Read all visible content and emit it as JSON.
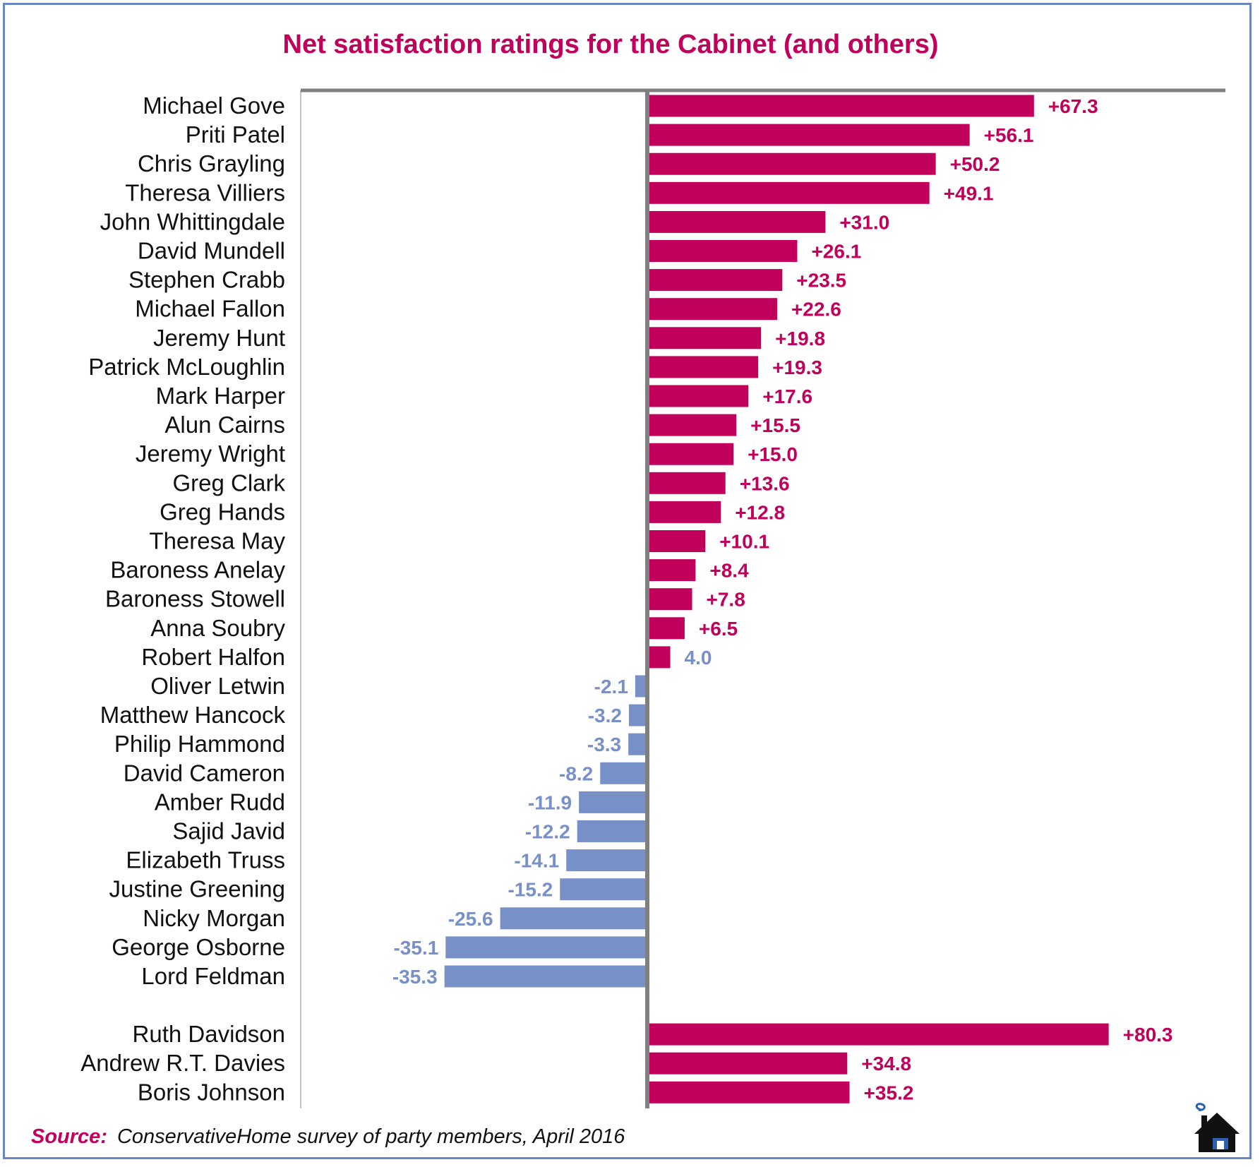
{
  "chart_data": {
    "type": "bar",
    "orientation": "horizontal",
    "title": "Net satisfaction ratings for the Cabinet (and others)",
    "xlim": [
      -52,
      82
    ],
    "colors": {
      "positive": "#c0005a",
      "negative": "#7890c8",
      "axis": "#7f7f7f"
    },
    "groups": [
      {
        "rows": [
          {
            "name": "Michael Gove",
            "value": 67.3,
            "label": "+67.3"
          },
          {
            "name": "Priti Patel",
            "value": 56.1,
            "label": "+56.1"
          },
          {
            "name": "Chris Grayling",
            "value": 50.2,
            "label": "+50.2"
          },
          {
            "name": "Theresa Villiers",
            "value": 49.1,
            "label": "+49.1"
          },
          {
            "name": "John Whittingdale",
            "value": 31.0,
            "label": "+31.0"
          },
          {
            "name": "David Mundell",
            "value": 26.1,
            "label": "+26.1"
          },
          {
            "name": "Stephen Crabb",
            "value": 23.5,
            "label": "+23.5"
          },
          {
            "name": "Michael Fallon",
            "value": 22.6,
            "label": "+22.6"
          },
          {
            "name": "Jeremy Hunt",
            "value": 19.8,
            "label": "+19.8"
          },
          {
            "name": "Patrick McLoughlin",
            "value": 19.3,
            "label": "+19.3"
          },
          {
            "name": "Mark Harper",
            "value": 17.6,
            "label": "+17.6"
          },
          {
            "name": "Alun Cairns",
            "value": 15.5,
            "label": "+15.5"
          },
          {
            "name": "Jeremy Wright",
            "value": 15.0,
            "label": "+15.0"
          },
          {
            "name": "Greg Clark",
            "value": 13.6,
            "label": "+13.6"
          },
          {
            "name": "Greg Hands",
            "value": 12.8,
            "label": "+12.8"
          },
          {
            "name": "Theresa May",
            "value": 10.1,
            "label": "+10.1"
          },
          {
            "name": "Baroness Anelay",
            "value": 8.4,
            "label": "+8.4"
          },
          {
            "name": "Baroness Stowell",
            "value": 7.8,
            "label": "+7.8"
          },
          {
            "name": "Anna Soubry",
            "value": 6.5,
            "label": "+6.5"
          },
          {
            "name": "Robert Halfon",
            "value": 4.0,
            "label": "4.0",
            "label_color": "#7890c8"
          },
          {
            "name": "Oliver Letwin",
            "value": -2.1,
            "label": "-2.1"
          },
          {
            "name": "Matthew Hancock",
            "value": -3.2,
            "label": "-3.2"
          },
          {
            "name": "Philip Hammond",
            "value": -3.3,
            "label": "-3.3"
          },
          {
            "name": "David Cameron",
            "value": -8.2,
            "label": "-8.2"
          },
          {
            "name": "Amber Rudd",
            "value": -11.9,
            "label": "-11.9"
          },
          {
            "name": "Sajid Javid",
            "value": -12.2,
            "label": "-12.2"
          },
          {
            "name": "Elizabeth Truss",
            "value": -14.1,
            "label": "-14.1"
          },
          {
            "name": "Justine Greening",
            "value": -15.2,
            "label": "-15.2"
          },
          {
            "name": "Nicky Morgan",
            "value": -25.6,
            "label": "-25.6"
          },
          {
            "name": "George Osborne",
            "value": -35.1,
            "label": "-35.1"
          },
          {
            "name": "Lord Feldman",
            "value": -35.3,
            "label": "-35.3"
          }
        ]
      },
      {
        "rows": [
          {
            "name": "Ruth Davidson",
            "value": 80.3,
            "label": "+80.3"
          },
          {
            "name": "Andrew R.T. Davies",
            "value": 34.8,
            "label": "+34.8"
          },
          {
            "name": "Boris Johnson",
            "value": 35.2,
            "label": "+35.2"
          }
        ]
      }
    ]
  },
  "source": {
    "label": "Source:",
    "text": "ConservativeHome survey of party members, April 2016"
  },
  "logo_icon": "conservativehome-house-icon"
}
